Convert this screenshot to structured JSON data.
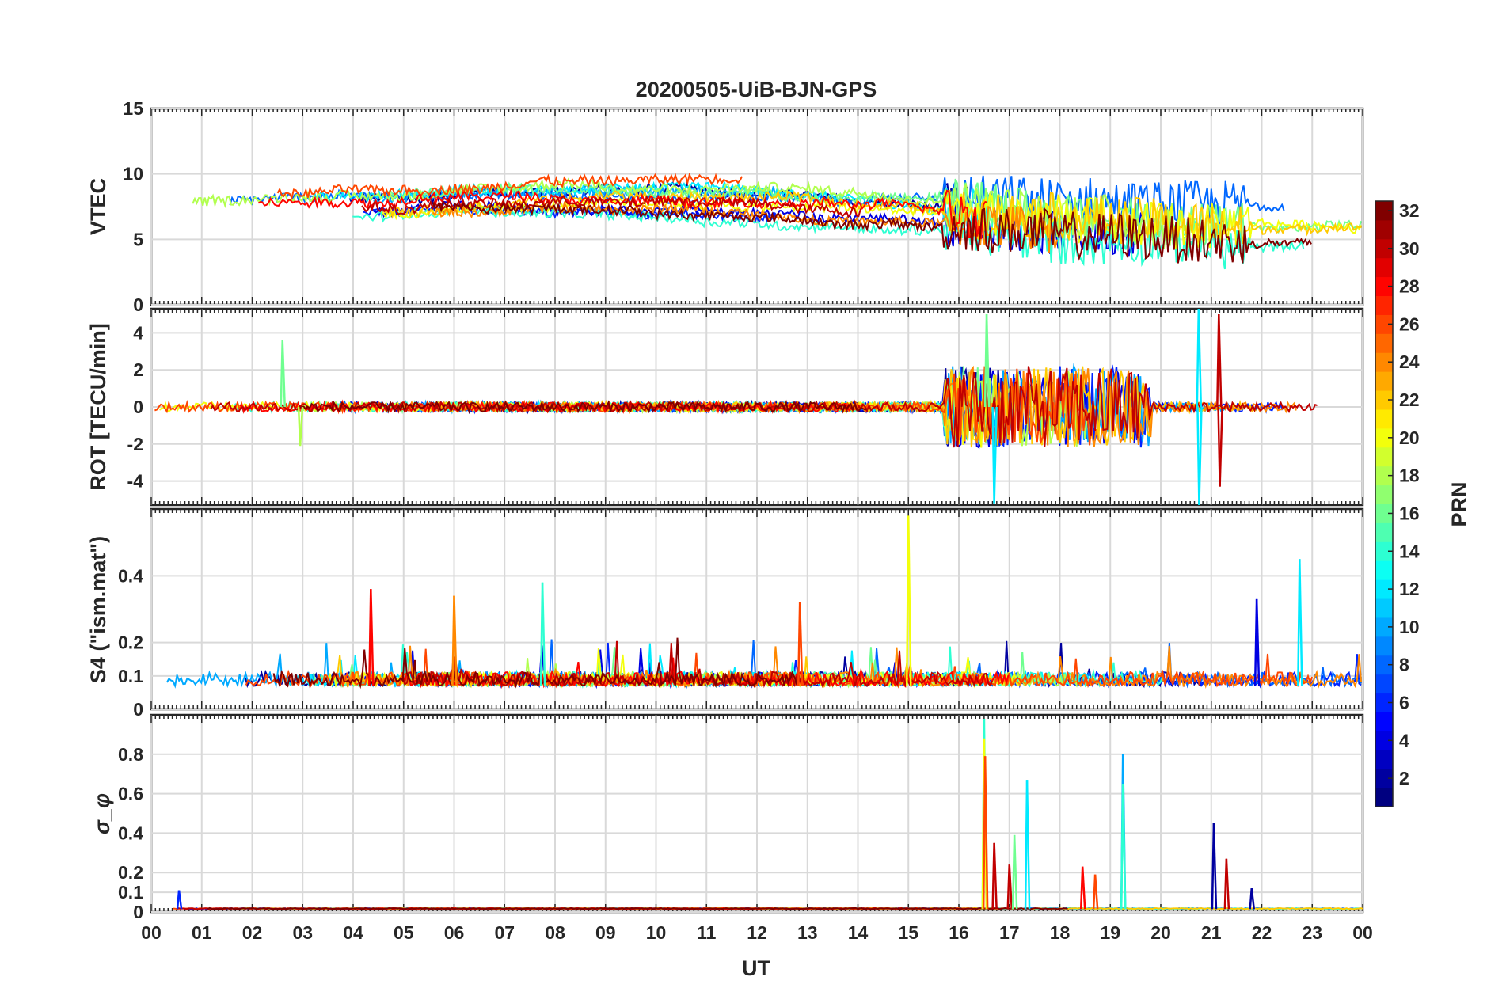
{
  "chart_data": {
    "type": "line",
    "title": "20200505-UiB-BJN-GPS",
    "x_axis": {
      "label": "UT",
      "range_hours": [
        0,
        24
      ],
      "tick_labels": [
        "00",
        "01",
        "02",
        "03",
        "04",
        "05",
        "06",
        "07",
        "08",
        "09",
        "10",
        "11",
        "12",
        "13",
        "14",
        "15",
        "16",
        "17",
        "18",
        "19",
        "20",
        "21",
        "22",
        "23",
        "00"
      ]
    },
    "panels": [
      {
        "id": "vtec",
        "ylabel": "VTEC",
        "ylim": [
          0,
          15
        ],
        "yticks": [
          0,
          5,
          10,
          15
        ],
        "ytick_labels": [
          "0",
          "5",
          "10",
          "15"
        ],
        "baseline": 6.8,
        "disturbance": {
          "start": 15.7,
          "end": 21.8,
          "amplitude": 1.8
        },
        "spikes": []
      },
      {
        "id": "rot",
        "ylabel": "ROT [TECU/min]",
        "ylim": [
          -5.3,
          5.3
        ],
        "yticks": [
          -4,
          -2,
          0,
          2,
          4
        ],
        "ytick_labels": [
          "-4",
          "-2",
          "0",
          "2",
          "4"
        ],
        "baseline": 0,
        "disturbance": {
          "start": 15.7,
          "end": 19.8,
          "amplitude": 2.2
        },
        "spikes": [
          {
            "t": 2.6,
            "v": 3.6,
            "prn": 16
          },
          {
            "t": 2.95,
            "v": -2.1,
            "prn": 18
          },
          {
            "t": 16.55,
            "v": 5.0,
            "prn": 16
          },
          {
            "t": 16.7,
            "v": -5.2,
            "prn": 12
          },
          {
            "t": 20.75,
            "v": 5.3,
            "prn": 12
          },
          {
            "t": 20.76,
            "v": -5.3,
            "prn": 12
          },
          {
            "t": 21.15,
            "v": 5.0,
            "prn": 30
          },
          {
            "t": 21.17,
            "v": -4.3,
            "prn": 30
          }
        ]
      },
      {
        "id": "s4",
        "ylabel": "S4 (\"ism.mat\")",
        "ylim": [
          0,
          0.6
        ],
        "yticks": [
          0,
          0.1,
          0.2,
          0.4
        ],
        "ytick_labels": [
          "0",
          "0.1",
          "0.2",
          "0.4"
        ],
        "baseline": 0.07,
        "disturbance": {
          "start": 0,
          "end": 24,
          "amplitude": 0.06
        },
        "spikes": [
          {
            "t": 15.0,
            "v": 0.58,
            "prn": 20
          },
          {
            "t": 22.75,
            "v": 0.45,
            "prn": 12
          },
          {
            "t": 7.75,
            "v": 0.38,
            "prn": 14
          },
          {
            "t": 4.35,
            "v": 0.36,
            "prn": 28
          },
          {
            "t": 6.0,
            "v": 0.34,
            "prn": 24
          },
          {
            "t": 12.85,
            "v": 0.32,
            "prn": 26
          },
          {
            "t": 21.9,
            "v": 0.33,
            "prn": 4
          }
        ]
      },
      {
        "id": "sigma_phi",
        "ylabel": "σ_φ",
        "ylim": [
          0,
          1.0
        ],
        "yticks": [
          0,
          0.1,
          0.2,
          0.4,
          0.6,
          0.8
        ],
        "ytick_labels": [
          "0",
          "0.1",
          "0.2",
          "0.4",
          "0.6",
          "0.8"
        ],
        "baseline": 0.015,
        "disturbance": {
          "start": 0,
          "end": 24,
          "amplitude": 0.01
        },
        "spikes": [
          {
            "t": 16.5,
            "v": 0.98,
            "prn": 14
          },
          {
            "t": 16.5,
            "v": 0.88,
            "prn": 20
          },
          {
            "t": 16.52,
            "v": 0.79,
            "prn": 26
          },
          {
            "t": 16.7,
            "v": 0.35,
            "prn": 30
          },
          {
            "t": 17.0,
            "v": 0.24,
            "prn": 30
          },
          {
            "t": 17.1,
            "v": 0.39,
            "prn": 16
          },
          {
            "t": 17.35,
            "v": 0.67,
            "prn": 12
          },
          {
            "t": 18.45,
            "v": 0.23,
            "prn": 28
          },
          {
            "t": 18.7,
            "v": 0.19,
            "prn": 26
          },
          {
            "t": 19.25,
            "v": 0.8,
            "prn": 10
          },
          {
            "t": 19.25,
            "v": 0.65,
            "prn": 14
          },
          {
            "t": 21.05,
            "v": 0.45,
            "prn": 2
          },
          {
            "t": 21.3,
            "v": 0.27,
            "prn": 30
          },
          {
            "t": 21.8,
            "v": 0.12,
            "prn": 2
          },
          {
            "t": 0.55,
            "v": 0.11,
            "prn": 6
          }
        ]
      }
    ],
    "colorbar": {
      "label": "PRN",
      "colormap": "jet",
      "range": [
        1,
        32
      ],
      "tick_labels": [
        "2",
        "4",
        "6",
        "8",
        "10",
        "12",
        "14",
        "16",
        "18",
        "20",
        "22",
        "24",
        "26",
        "28",
        "30",
        "32"
      ]
    },
    "series_prns": [
      2,
      4,
      6,
      8,
      10,
      12,
      14,
      16,
      18,
      20,
      22,
      24,
      26,
      28,
      30,
      32
    ]
  }
}
